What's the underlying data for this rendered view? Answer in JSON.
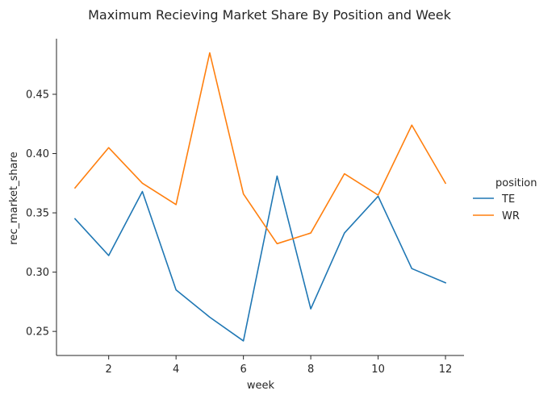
{
  "chart_data": {
    "type": "line",
    "title": "Maximum Recieving Market Share By Position and Week",
    "xlabel": "week",
    "ylabel": "rec_market_share",
    "x": [
      1,
      2,
      3,
      4,
      5,
      6,
      7,
      8,
      9,
      10,
      11,
      12
    ],
    "x_ticks": [
      "2",
      "4",
      "6",
      "8",
      "10",
      "12"
    ],
    "y_ticks": [
      "0.25",
      "0.30",
      "0.35",
      "0.40",
      "0.45"
    ],
    "xlim": [
      0.45,
      12.55
    ],
    "ylim": [
      0.2297,
      0.4969
    ],
    "grid": false,
    "legend": {
      "title": "position",
      "placement": "right"
    },
    "series": [
      {
        "name": "TE",
        "color": "#1f77b4",
        "values": [
          0.345,
          0.314,
          0.368,
          0.285,
          0.262,
          0.242,
          0.381,
          0.269,
          0.333,
          0.364,
          0.303,
          0.291
        ]
      },
      {
        "name": "WR",
        "color": "#ff7f0e",
        "values": [
          0.371,
          0.405,
          0.375,
          0.357,
          0.485,
          0.366,
          0.324,
          0.333,
          0.383,
          0.365,
          0.424,
          0.375
        ]
      }
    ]
  }
}
